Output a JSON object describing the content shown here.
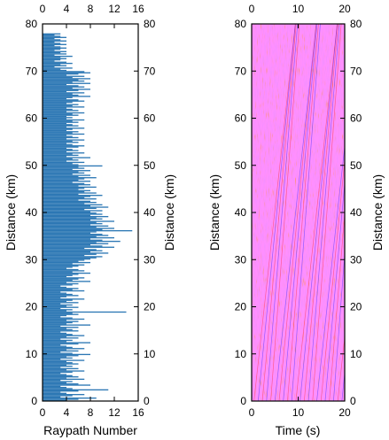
{
  "chart_data": [
    {
      "type": "bar",
      "orientation": "horizontal",
      "xlabel": "Raypath Number",
      "ylabel": "Distance (km)",
      "ylabel_right": "Distance (km)",
      "xlim": [
        0,
        16
      ],
      "ylim": [
        0,
        80
      ],
      "xticks": [
        "0",
        "4",
        "8",
        "12",
        "16"
      ],
      "yticks": [
        "0",
        "10",
        "20",
        "30",
        "40",
        "50",
        "60",
        "70",
        "80"
      ],
      "grid": false,
      "bar_color": "#2c77b4",
      "series": [
        {
          "distance_bins_km": [
            [
              0,
              10,
              0.25
            ],
            [
              10,
              20,
              0.25
            ],
            [
              20,
              30,
              0.25
            ],
            [
              30,
              40,
              0.25
            ],
            [
              40,
              50,
              0.25
            ],
            [
              50,
              60,
              0.25
            ],
            [
              60,
              70,
              0.25
            ],
            [
              70,
              78,
              0.25
            ]
          ],
          "approx_raypath_counts": [
            [
              4,
              6,
              9,
              3,
              5,
              7,
              4,
              3,
              6,
              11,
              5,
              4,
              3,
              8,
              6,
              4,
              5,
              3,
              7,
              4,
              6,
              5,
              4,
              3,
              5,
              7,
              4,
              6,
              3,
              5,
              4,
              6,
              5,
              4,
              7,
              3,
              5,
              4,
              6,
              8
            ],
            [
              5,
              3,
              6,
              4,
              7,
              5,
              4,
              3,
              6,
              8,
              4,
              5,
              3,
              6,
              4,
              7,
              5,
              4,
              3,
              6,
              5,
              4,
              6,
              3,
              8,
              4,
              5,
              6,
              4,
              7,
              5,
              3,
              4,
              6,
              5,
              14,
              4,
              5,
              3,
              6
            ],
            [
              4,
              5,
              3,
              6,
              4,
              5,
              7,
              3,
              4,
              6,
              5,
              4,
              3,
              7,
              5,
              6,
              4,
              3,
              5,
              6,
              4,
              8,
              5,
              6,
              7,
              4,
              5,
              6,
              8,
              5,
              7,
              6,
              4,
              5,
              6,
              7,
              5,
              8,
              6,
              7
            ],
            [
              8,
              9,
              10,
              7,
              9,
              11,
              8,
              10,
              9,
              7,
              12,
              10,
              8,
              11,
              9,
              13,
              10,
              8,
              12,
              9,
              11,
              10,
              8,
              9,
              15,
              10,
              12,
              9,
              11,
              8,
              10,
              9,
              12,
              8,
              10,
              9,
              11,
              8,
              10,
              9
            ],
            [
              8,
              10,
              7,
              9,
              11,
              8,
              10,
              7,
              9,
              8,
              6,
              9,
              7,
              8,
              10,
              6,
              9,
              7,
              8,
              6,
              7,
              9,
              6,
              8,
              7,
              5,
              8,
              6,
              7,
              9,
              6,
              8,
              5,
              7,
              6,
              8,
              5,
              7,
              6,
              10
            ],
            [
              6,
              5,
              7,
              4,
              6,
              5,
              8,
              4,
              6,
              5,
              7,
              4,
              6,
              5,
              4,
              6,
              7,
              5,
              4,
              6,
              5,
              7,
              4,
              6,
              5,
              4,
              7,
              5,
              6,
              4,
              5,
              7,
              4,
              6,
              5,
              4,
              6,
              5,
              7,
              4
            ],
            [
              5,
              4,
              6,
              5,
              7,
              4,
              6,
              5,
              4,
              7,
              5,
              6,
              4,
              5,
              7,
              6,
              4,
              5,
              8,
              6,
              5,
              7,
              4,
              6,
              8,
              5,
              7,
              6,
              4,
              8,
              5,
              7,
              6,
              8,
              5,
              7,
              4,
              6,
              8,
              7
            ],
            [
              4,
              3,
              5,
              2,
              4,
              3,
              5,
              4,
              2,
              3,
              4,
              3,
              5,
              2,
              4,
              3,
              4,
              2,
              3,
              4,
              3,
              2,
              4,
              3,
              2,
              4,
              3,
              2,
              4,
              3,
              2,
              3
            ]
          ]
        }
      ]
    },
    {
      "type": "heatmap",
      "xlabel": "Time (s)",
      "ylabel": "Distance (km)",
      "ylabel_right": "Distance (km)",
      "xlim": [
        0,
        20
      ],
      "ylim": [
        0,
        80
      ],
      "xticks": [
        "0",
        "10",
        "20"
      ],
      "yticks": [
        "0",
        "10",
        "20",
        "30",
        "40",
        "50",
        "60",
        "70",
        "80"
      ],
      "colormap": [
        "#0000ff",
        "#ffffff",
        "#ff0000"
      ],
      "grid": false
    }
  ]
}
